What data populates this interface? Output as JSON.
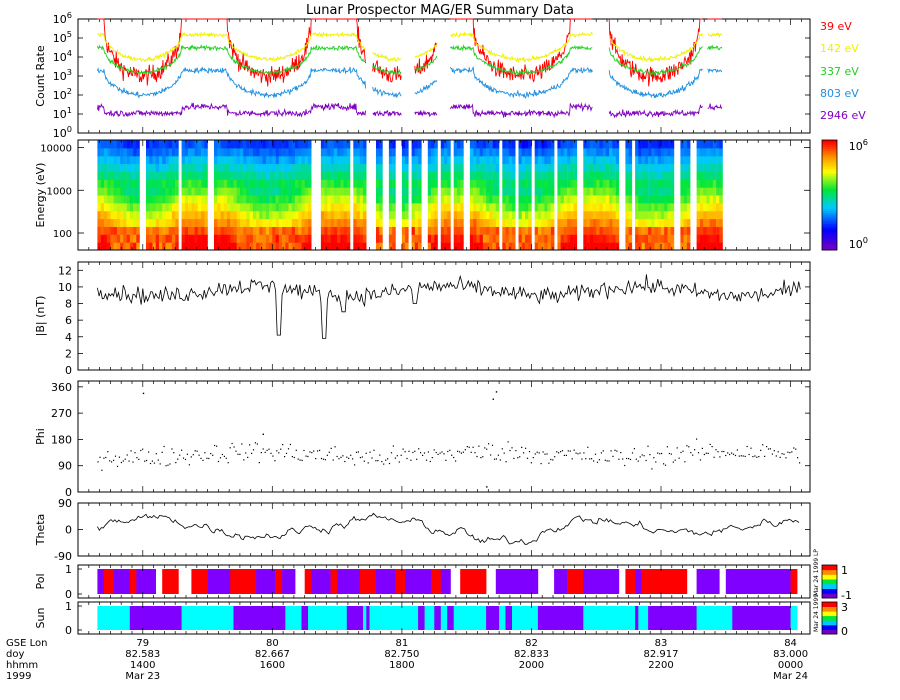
{
  "title": "Lunar Prospector MAG/ER Summary Data",
  "colors": {
    "e39": "#ff0000",
    "e142": "#f0f000",
    "e337": "#20d020",
    "e803": "#2090e0",
    "e2946": "#8000c0",
    "pol_pos": "#ff0000",
    "pol_neg": "#8000ff",
    "pol_gap": "#ffffff",
    "sun_lit": "#00ffff",
    "sun_dark": "#8000ff"
  },
  "chart_data": [
    {
      "type": "line",
      "panel": "count_rate",
      "ylabel": "Count Rate",
      "yscale": "log",
      "ylim": [
        1,
        1000000
      ],
      "yticks": [
        "10^0",
        "10^1",
        "10^2",
        "10^3",
        "10^4",
        "10^5",
        "10^6"
      ],
      "xlim": [
        13.0,
        24.3
      ],
      "series": [
        {
          "name": "39 eV",
          "color_key": "e39",
          "base": 1000,
          "wake_peak": 2000000,
          "noise": 0.35
        },
        {
          "name": "142 eV",
          "color_key": "e142",
          "base": 150000,
          "wake_peak": 150000,
          "noise": 0.08
        },
        {
          "name": "337 eV",
          "color_key": "e337",
          "base": 30000,
          "wake_peak": 30000,
          "noise": 0.08
        },
        {
          "name": "803 eV",
          "color_key": "e803",
          "base": 2000,
          "wake_peak": 2000,
          "noise": 0.1
        },
        {
          "name": "2946 eV",
          "color_key": "e2946",
          "base": 20,
          "wake_peak": 40,
          "noise": 0.12
        }
      ],
      "night_intervals_hr": [
        [
          13.4,
          14.6
        ],
        [
          15.3,
          16.6
        ],
        [
          17.3,
          18.6
        ],
        [
          19.1,
          20.6
        ],
        [
          21.2,
          22.6
        ]
      ],
      "data_gaps_hr": [
        [
          17.45,
          17.55
        ],
        [
          18.0,
          18.2
        ],
        [
          18.55,
          18.75
        ],
        [
          20.95,
          21.2
        ],
        [
          22.65,
          22.72
        ]
      ],
      "data_end_hr": 22.95
    },
    {
      "type": "heatmap",
      "panel": "spectrogram",
      "ylabel": "Energy (eV)",
      "yscale": "log",
      "ylim": [
        40,
        15000
      ],
      "yticks": [
        "100",
        "1000",
        "10000"
      ],
      "colorbar_min": "10^0",
      "colorbar_max": "10^6",
      "data_end_hr": 22.95,
      "gaps_hr": [
        [
          13.95,
          14.05
        ],
        [
          14.55,
          14.62
        ],
        [
          15.0,
          15.1
        ],
        [
          16.6,
          16.75
        ],
        [
          17.2,
          17.25
        ],
        [
          17.45,
          17.58
        ],
        [
          17.7,
          17.78
        ],
        [
          17.9,
          17.98
        ],
        [
          18.1,
          18.15
        ],
        [
          18.3,
          18.42
        ],
        [
          18.55,
          18.62
        ],
        [
          18.75,
          18.8
        ],
        [
          18.95,
          19.05
        ],
        [
          19.5,
          19.55
        ],
        [
          19.75,
          19.8
        ],
        [
          20.0,
          20.05
        ],
        [
          20.35,
          20.42
        ],
        [
          20.7,
          20.82
        ],
        [
          21.35,
          21.45
        ],
        [
          21.55,
          21.6
        ],
        [
          22.2,
          22.3
        ],
        [
          22.45,
          22.55
        ]
      ]
    },
    {
      "type": "line",
      "panel": "bmag",
      "ylabel": "|B| (nT)",
      "ylim": [
        0,
        13
      ],
      "yticks": [
        "0",
        "2",
        "4",
        "6",
        "8",
        "10",
        "12"
      ],
      "mean": 9.5,
      "noise": 0.9,
      "dips": [
        {
          "t": 16.1,
          "v": 4.2
        },
        {
          "t": 16.8,
          "v": 3.8
        },
        {
          "t": 17.1,
          "v": 7.0
        },
        {
          "t": 18.2,
          "v": 8.0
        }
      ]
    },
    {
      "type": "scatter",
      "panel": "phi",
      "ylabel": "Phi",
      "ylim": [
        0,
        380
      ],
      "yticks": [
        "0",
        "90",
        "180",
        "270",
        "360"
      ],
      "mean": 130,
      "noise": 25,
      "outliers": [
        {
          "t": 14.0,
          "v": 340
        },
        {
          "t": 15.85,
          "v": 200
        },
        {
          "t": 19.4,
          "v": 320
        },
        {
          "t": 19.45,
          "v": 345
        },
        {
          "t": 19.3,
          "v": 20
        }
      ]
    },
    {
      "type": "line",
      "panel": "theta",
      "ylabel": "Theta",
      "ylim": [
        -90,
        90
      ],
      "yticks": [
        "-90",
        "0",
        "90"
      ],
      "mean": 10,
      "noise": 22
    },
    {
      "type": "heatmap",
      "panel": "pol",
      "ylabel": "Pol",
      "yticks": [
        "0",
        "1"
      ],
      "colorbar_min": "-1",
      "colorbar_max": "1",
      "note": "Mar 24 1999 LP ",
      "segments": [
        [
          13.3,
          13.4,
          "n"
        ],
        [
          13.4,
          13.55,
          "p"
        ],
        [
          13.55,
          13.8,
          "n"
        ],
        [
          13.8,
          13.9,
          "p"
        ],
        [
          13.9,
          14.2,
          "n"
        ],
        [
          14.2,
          14.3,
          "g"
        ],
        [
          14.3,
          14.55,
          "p"
        ],
        [
          14.55,
          14.75,
          "g"
        ],
        [
          14.75,
          15.0,
          "p"
        ],
        [
          15.0,
          15.35,
          "n"
        ],
        [
          15.35,
          15.75,
          "p"
        ],
        [
          15.75,
          16.05,
          "n"
        ],
        [
          16.05,
          16.15,
          "p"
        ],
        [
          16.15,
          16.35,
          "n"
        ],
        [
          16.35,
          16.5,
          "g"
        ],
        [
          16.5,
          16.6,
          "p"
        ],
        [
          16.6,
          16.9,
          "n"
        ],
        [
          16.9,
          17.0,
          "p"
        ],
        [
          17.0,
          17.35,
          "n"
        ],
        [
          17.35,
          17.6,
          "p"
        ],
        [
          17.6,
          17.9,
          "n"
        ],
        [
          17.9,
          18.05,
          "p"
        ],
        [
          18.05,
          18.45,
          "n"
        ],
        [
          18.45,
          18.6,
          "p"
        ],
        [
          18.6,
          18.75,
          "n"
        ],
        [
          18.75,
          18.9,
          "g"
        ],
        [
          18.9,
          19.3,
          "p"
        ],
        [
          19.3,
          19.45,
          "g"
        ],
        [
          19.45,
          20.1,
          "n"
        ],
        [
          20.1,
          20.35,
          "g"
        ],
        [
          20.35,
          20.55,
          "n"
        ],
        [
          20.55,
          20.8,
          "p"
        ],
        [
          20.8,
          21.35,
          "n"
        ],
        [
          21.35,
          21.45,
          "g"
        ],
        [
          21.45,
          21.6,
          "p"
        ],
        [
          21.6,
          21.7,
          "n"
        ],
        [
          21.7,
          22.4,
          "p"
        ],
        [
          22.4,
          22.55,
          "g"
        ],
        [
          22.55,
          22.9,
          "n"
        ],
        [
          22.9,
          23.0,
          "g"
        ],
        [
          23.0,
          24.0,
          "n"
        ],
        [
          24.0,
          24.1,
          "p"
        ]
      ]
    },
    {
      "type": "heatmap",
      "panel": "sun",
      "ylabel": "Sun",
      "yticks": [
        "0",
        "1"
      ],
      "colorbar_min": "0",
      "colorbar_max": "3",
      "note": "Mar 24 1999",
      "segments": [
        [
          13.3,
          13.8,
          "s"
        ],
        [
          13.8,
          14.6,
          "d"
        ],
        [
          14.6,
          15.4,
          "s"
        ],
        [
          15.4,
          16.2,
          "d"
        ],
        [
          16.2,
          16.45,
          "s"
        ],
        [
          16.45,
          16.55,
          "d"
        ],
        [
          16.55,
          17.15,
          "s"
        ],
        [
          17.15,
          17.4,
          "d"
        ],
        [
          17.4,
          17.45,
          "s"
        ],
        [
          17.45,
          17.5,
          "d"
        ],
        [
          17.5,
          18.25,
          "s"
        ],
        [
          18.25,
          18.35,
          "d"
        ],
        [
          18.35,
          18.5,
          "s"
        ],
        [
          18.5,
          18.6,
          "d"
        ],
        [
          18.6,
          18.7,
          "s"
        ],
        [
          18.7,
          18.8,
          "d"
        ],
        [
          18.8,
          19.3,
          "s"
        ],
        [
          19.3,
          19.5,
          "d"
        ],
        [
          19.5,
          19.6,
          "s"
        ],
        [
          19.6,
          19.7,
          "d"
        ],
        [
          19.7,
          20.1,
          "s"
        ],
        [
          20.1,
          20.8,
          "d"
        ],
        [
          20.8,
          21.6,
          "s"
        ],
        [
          21.6,
          21.65,
          "d"
        ],
        [
          21.65,
          21.8,
          "s"
        ],
        [
          21.8,
          22.55,
          "d"
        ],
        [
          22.55,
          23.1,
          "s"
        ],
        [
          23.1,
          24.0,
          "d"
        ],
        [
          24.0,
          24.1,
          "s"
        ]
      ]
    }
  ],
  "channel_labels": [
    "39 eV",
    "142 eV",
    "337 eV",
    "803 eV",
    "2946 eV"
  ],
  "x_axis": {
    "labels": [
      "GSE Lon",
      "doy",
      "hhmm",
      "1999"
    ],
    "xlim_hr": [
      13.0,
      24.3
    ],
    "ticks": [
      {
        "t": 14.0,
        "lon": "79",
        "doy": "82.583",
        "hhmm": "1400",
        "date": "Mar 23"
      },
      {
        "t": 16.0,
        "lon": "80",
        "doy": "82.667",
        "hhmm": "1600",
        "date": ""
      },
      {
        "t": 18.0,
        "lon": "81",
        "doy": "82.750",
        "hhmm": "1800",
        "date": ""
      },
      {
        "t": 20.0,
        "lon": "82",
        "doy": "82.833",
        "hhmm": "2000",
        "date": ""
      },
      {
        "t": 22.0,
        "lon": "83",
        "doy": "82.917",
        "hhmm": "2200",
        "date": ""
      },
      {
        "t": 24.0,
        "lon": "84",
        "doy": "83.000",
        "hhmm": "0000",
        "date": "Mar 24"
      }
    ]
  }
}
